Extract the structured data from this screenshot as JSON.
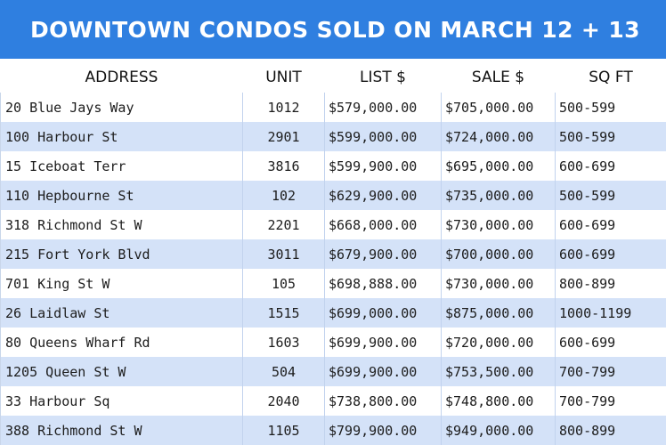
{
  "title": "DOWNTOWN CONDOS SOLD ON MARCH 12 + 13",
  "columns": [
    "ADDRESS",
    "UNIT",
    "LIST $",
    "SALE $",
    "SQ FT"
  ],
  "rows": [
    [
      "20 Blue Jays Way",
      "1012",
      "$579,000.00",
      "$705,000.00",
      "500-599"
    ],
    [
      "100 Harbour St",
      "2901",
      "$599,000.00",
      "$724,000.00",
      "500-599"
    ],
    [
      "15 Iceboat Terr",
      "3816",
      "$599,900.00",
      "$695,000.00",
      "600-699"
    ],
    [
      "110 Hepbourne St",
      "102",
      "$629,900.00",
      "$735,000.00",
      "500-599"
    ],
    [
      "318 Richmond St W",
      "2201",
      "$668,000.00",
      "$730,000.00",
      "600-699"
    ],
    [
      "215 Fort York Blvd",
      "3011",
      "$679,900.00",
      "$700,000.00",
      "600-699"
    ],
    [
      "701 King St W",
      "105",
      "$698,888.00",
      "$730,000.00",
      "800-899"
    ],
    [
      "26 Laidlaw St",
      "1515",
      "$699,000.00",
      "$875,000.00",
      "1000-1199"
    ],
    [
      "80 Queens Wharf Rd",
      "1603",
      "$699,900.00",
      "$720,000.00",
      "600-699"
    ],
    [
      "1205 Queen St W",
      "504",
      "$699,900.00",
      "$753,500.00",
      "700-799"
    ],
    [
      "33 Harbour Sq",
      "2040",
      "$738,800.00",
      "$748,800.00",
      "700-799"
    ],
    [
      "388 Richmond St W",
      "1105",
      "$799,900.00",
      "$949,000.00",
      "800-899"
    ]
  ]
}
